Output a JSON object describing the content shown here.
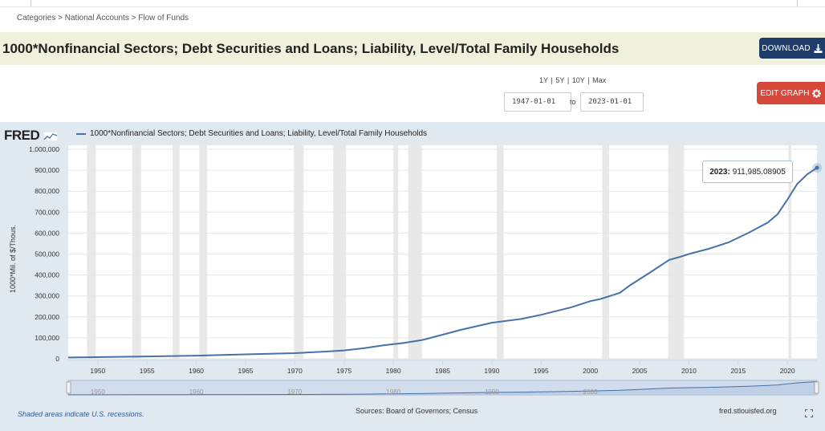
{
  "breadcrumb": {
    "items": [
      "Categories",
      "National Accounts",
      "Flow of Funds"
    ],
    "separator": ">"
  },
  "series_title": "1000*Nonfinancial Sectors; Debt Securities and Loans; Liability, Level/Total Family Households",
  "buttons": {
    "download": "DOWNLOAD",
    "edit_graph": "EDIT GRAPH"
  },
  "range_links": [
    "1Y",
    "5Y",
    "10Y",
    "Max"
  ],
  "date_range": {
    "from": "1947-01-01",
    "to_label": "to",
    "to": "2023-01-01"
  },
  "legend_label": "1000*Nonfinancial Sectors; Debt Securities and Loans; Liability, Level/Total Family Households",
  "fred_logo": "FRED",
  "tooltip": {
    "year": "2023:",
    "value": "911,985.08905"
  },
  "footer": {
    "recessions_note": "Shaded areas indicate U.S. recessions.",
    "sources": "Sources: Board of Governors; Census",
    "site": "fred.stlouisfed.org"
  },
  "colors": {
    "line": "#4572a7",
    "recession": "#e8e8e8",
    "download_btn": "#1f3d6b",
    "edit_btn": "#d6483a",
    "title_bg": "#f0f1dc",
    "graph_bg": "#e1e9f0"
  },
  "chart_data": {
    "type": "line",
    "title": "1000*Nonfinancial Sectors; Debt Securities and Loans; Liability, Level/Total Family Households",
    "ylabel": "1000*Mil. of $/Thous.",
    "xlabel": "",
    "xlim": [
      1947,
      2023
    ],
    "ylim": [
      0,
      1000000
    ],
    "y_ticks": [
      0,
      100000,
      200000,
      300000,
      400000,
      500000,
      600000,
      700000,
      800000,
      900000,
      1000000
    ],
    "y_tick_labels": [
      "0",
      "100,000",
      "200,000",
      "300,000",
      "400,000",
      "500,000",
      "600,000",
      "700,000",
      "800,000",
      "900,000",
      "1,000,000"
    ],
    "x_ticks": [
      1950,
      1955,
      1960,
      1965,
      1970,
      1975,
      1980,
      1985,
      1990,
      1995,
      2000,
      2005,
      2010,
      2015,
      2020
    ],
    "navigator_ticks": [
      1950,
      1960,
      1970,
      1980,
      1990,
      2000
    ],
    "recessions": [
      [
        1948.9,
        1949.8
      ],
      [
        1953.5,
        1954.4
      ],
      [
        1957.6,
        1958.3
      ],
      [
        1960.3,
        1961.1
      ],
      [
        1969.9,
        1970.9
      ],
      [
        1973.9,
        1975.2
      ],
      [
        1980.0,
        1980.5
      ],
      [
        1981.5,
        1982.9
      ],
      [
        1990.5,
        1991.2
      ],
      [
        2001.2,
        2001.9
      ],
      [
        2007.9,
        2009.5
      ],
      [
        2020.1,
        2020.4
      ]
    ],
    "series": [
      {
        "name": "1000*Nonfinancial Sectors; Debt Securities and Loans; Liability, Level/Total Family Households",
        "x": [
          1947,
          1950,
          1955,
          1960,
          1965,
          1970,
          1973,
          1975,
          1977,
          1979,
          1981,
          1983,
          1985,
          1987,
          1990,
          1993,
          1995,
          1998,
          2000,
          2001,
          2003,
          2004,
          2006,
          2008,
          2009,
          2010,
          2012,
          2014,
          2016,
          2018,
          2019,
          2020,
          2021,
          2022,
          2023
        ],
        "values": [
          6000,
          7500,
          11000,
          15000,
          21000,
          27000,
          34000,
          40000,
          50000,
          64000,
          75000,
          90000,
          115000,
          140000,
          172000,
          190000,
          210000,
          245000,
          275000,
          285000,
          315000,
          350000,
          410000,
          472000,
          485000,
          500000,
          525000,
          555000,
          600000,
          650000,
          690000,
          760000,
          835000,
          880000,
          911985.08905
        ]
      }
    ]
  }
}
